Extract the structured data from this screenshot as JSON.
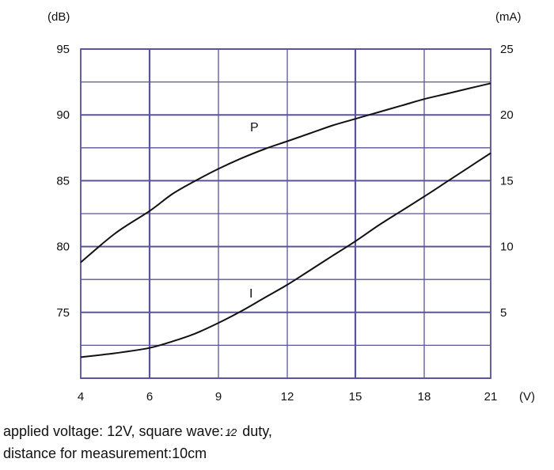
{
  "chart_data": {
    "type": "line",
    "x_unit": "(V)",
    "y_left_unit": "(dB)",
    "y_right_unit": "(mA)",
    "x_ticks": [
      4,
      6,
      9,
      12,
      15,
      18,
      21
    ],
    "x_range": [
      4,
      21
    ],
    "y_left_ticks": [
      75,
      80,
      85,
      90,
      95
    ],
    "y_left_range": [
      70,
      95
    ],
    "y_right_ticks": [
      5,
      10,
      15,
      20,
      25
    ],
    "y_right_range": [
      0,
      25
    ],
    "grid": true,
    "series": [
      {
        "name": "P",
        "axis": "left",
        "color": "#111111",
        "x": [
          4,
          5,
          6,
          7,
          8,
          9,
          10,
          11,
          12,
          13,
          14,
          15,
          16,
          17,
          18,
          19,
          20,
          21
        ],
        "y": [
          78.8,
          81.0,
          82.7,
          84.0,
          85.0,
          85.9,
          86.7,
          87.4,
          88.0,
          88.6,
          89.2,
          89.7,
          90.2,
          90.7,
          91.2,
          91.6,
          92.0,
          92.4
        ]
      },
      {
        "name": "I",
        "axis": "right",
        "color": "#111111",
        "x": [
          4,
          5,
          6,
          7,
          8,
          9,
          10,
          11,
          12,
          13,
          14,
          15,
          16,
          17,
          18,
          19,
          20,
          21
        ],
        "y": [
          1.6,
          1.9,
          2.3,
          2.8,
          3.4,
          4.2,
          5.1,
          6.1,
          7.1,
          8.2,
          9.3,
          10.4,
          11.6,
          12.7,
          13.8,
          14.9,
          16.0,
          17.1
        ]
      }
    ]
  },
  "notes": {
    "line1_before": "applied voltage: 12V, square wave:",
    "line1_fraction": "1⁄2",
    "line1_after": "duty,",
    "line2": "distance for measurement:10cm"
  },
  "colors": {
    "grid": "#5a5499",
    "curve": "#111111"
  }
}
